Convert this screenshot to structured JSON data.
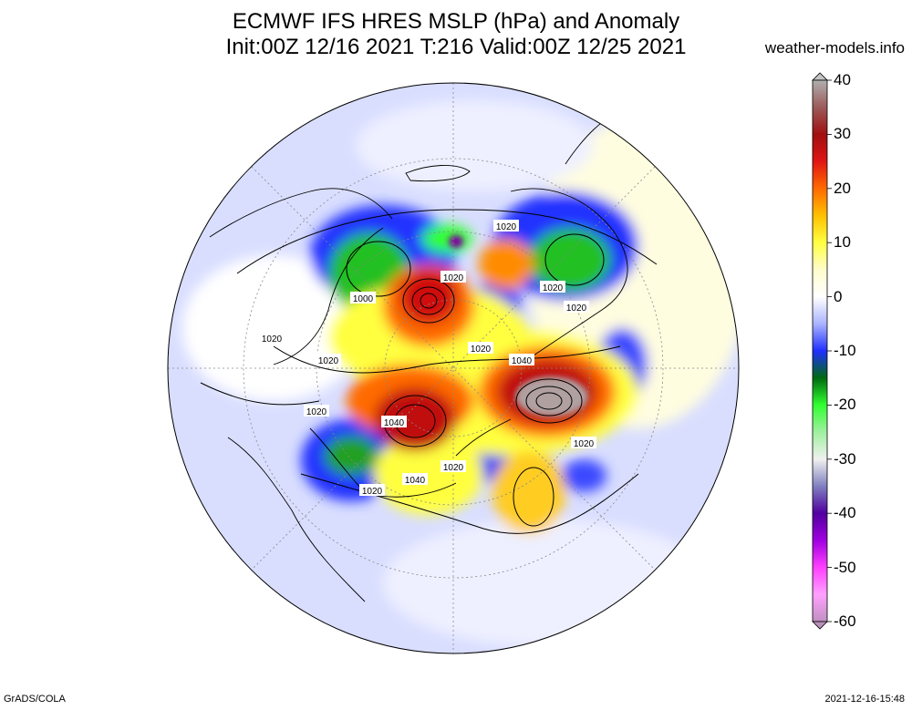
{
  "title": {
    "line1": "ECMWF IFS HRES MSLP (hPa) and Anomaly",
    "line2": "Init:00Z 12/16 2021 T:216 Valid:00Z 12/25 2021"
  },
  "credit": "weather-models.info",
  "footer": {
    "left": "GrADS/COLA",
    "right": "2021-12-16-15:48"
  },
  "colorbar": {
    "labels": [
      "40",
      "30",
      "20",
      "10",
      "0",
      "-10",
      "-20",
      "-30",
      "-40",
      "-50",
      "-60"
    ],
    "stops": [
      {
        "value": 40,
        "color": "#b0b0b0"
      },
      {
        "value": 35,
        "color": "#9c5a5a"
      },
      {
        "value": 30,
        "color": "#a01010"
      },
      {
        "value": 25,
        "color": "#e01414"
      },
      {
        "value": 20,
        "color": "#ff6a00"
      },
      {
        "value": 15,
        "color": "#ffc000"
      },
      {
        "value": 10,
        "color": "#ffff40"
      },
      {
        "value": 5,
        "color": "#fffccc"
      },
      {
        "value": 0,
        "color": "#ffffff"
      },
      {
        "value": -5,
        "color": "#aab4ff"
      },
      {
        "value": -10,
        "color": "#2030ff"
      },
      {
        "value": -15,
        "color": "#006a10"
      },
      {
        "value": -20,
        "color": "#30ff30"
      },
      {
        "value": -25,
        "color": "#a0f0a0"
      },
      {
        "value": -30,
        "color": "#f0f0f0"
      },
      {
        "value": -35,
        "color": "#8080c0"
      },
      {
        "value": -40,
        "color": "#5000a0"
      },
      {
        "value": -45,
        "color": "#a000e0"
      },
      {
        "value": -50,
        "color": "#ff40ff"
      },
      {
        "value": -55,
        "color": "#ffa0ff"
      },
      {
        "value": -60,
        "color": "#c090c0"
      }
    ]
  },
  "isobar_labels": [
    "1020",
    "1020",
    "1020",
    "1000",
    "1020",
    "1020",
    "1020",
    "1020",
    "1040",
    "1020",
    "1040",
    "1020",
    "1020",
    "1040",
    "1020"
  ]
}
